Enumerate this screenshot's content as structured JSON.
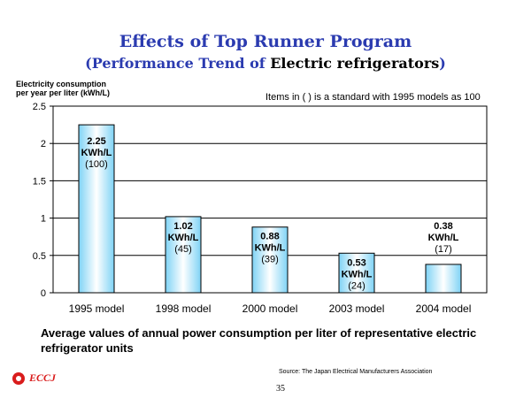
{
  "header": {
    "title": "Effects of Top Runner Program",
    "subtitle_prefix": "(Performance Trend of ",
    "subtitle_highlight": "Electric refrigerators",
    "subtitle_suffix": ")"
  },
  "chart_note": "Items in (   ) is a standard with 1995 models as 100",
  "caption": "Average values of annual power consumption per liter of representative electric refrigerator units",
  "source": "Source: The Japan Electrical Manufacturers Association",
  "page_number": "35",
  "logo": {
    "text": "ECCJ",
    "icon": "eccj-logo-icon"
  },
  "colors": {
    "bar_edge": "#7fd3f5",
    "bar_center": "#ffffff",
    "bar_outline": "#000000",
    "title": "#2b3bb0",
    "logo": "#d91c1c"
  },
  "chart_data": {
    "type": "bar",
    "title": "",
    "xlabel": "",
    "ylabel": "Electricity consumption per year per liter (kWh/L)",
    "ylabel_lines": [
      "Electricity consumption",
      "per year per liter (kWh/L)"
    ],
    "categories": [
      "1995 model",
      "1998 model",
      "2000 model",
      "2003 model",
      "2004 model"
    ],
    "values": [
      2.25,
      1.02,
      0.88,
      0.53,
      0.38
    ],
    "value_labels": [
      "2.25",
      "1.02",
      "0.88",
      "0.53",
      "0.38"
    ],
    "unit_labels": [
      "KWh/L",
      "KWh/L",
      "KWh/L",
      "KWh/L",
      "KWh/L"
    ],
    "index_labels": [
      "(100)",
      "(45)",
      "(39)",
      "(24)",
      "(17)"
    ],
    "ylim": [
      0,
      2.5
    ],
    "yticks": [
      "0",
      "0.5",
      "1",
      "1.5",
      "2",
      "2.5"
    ],
    "grid": true,
    "legend": "none"
  }
}
